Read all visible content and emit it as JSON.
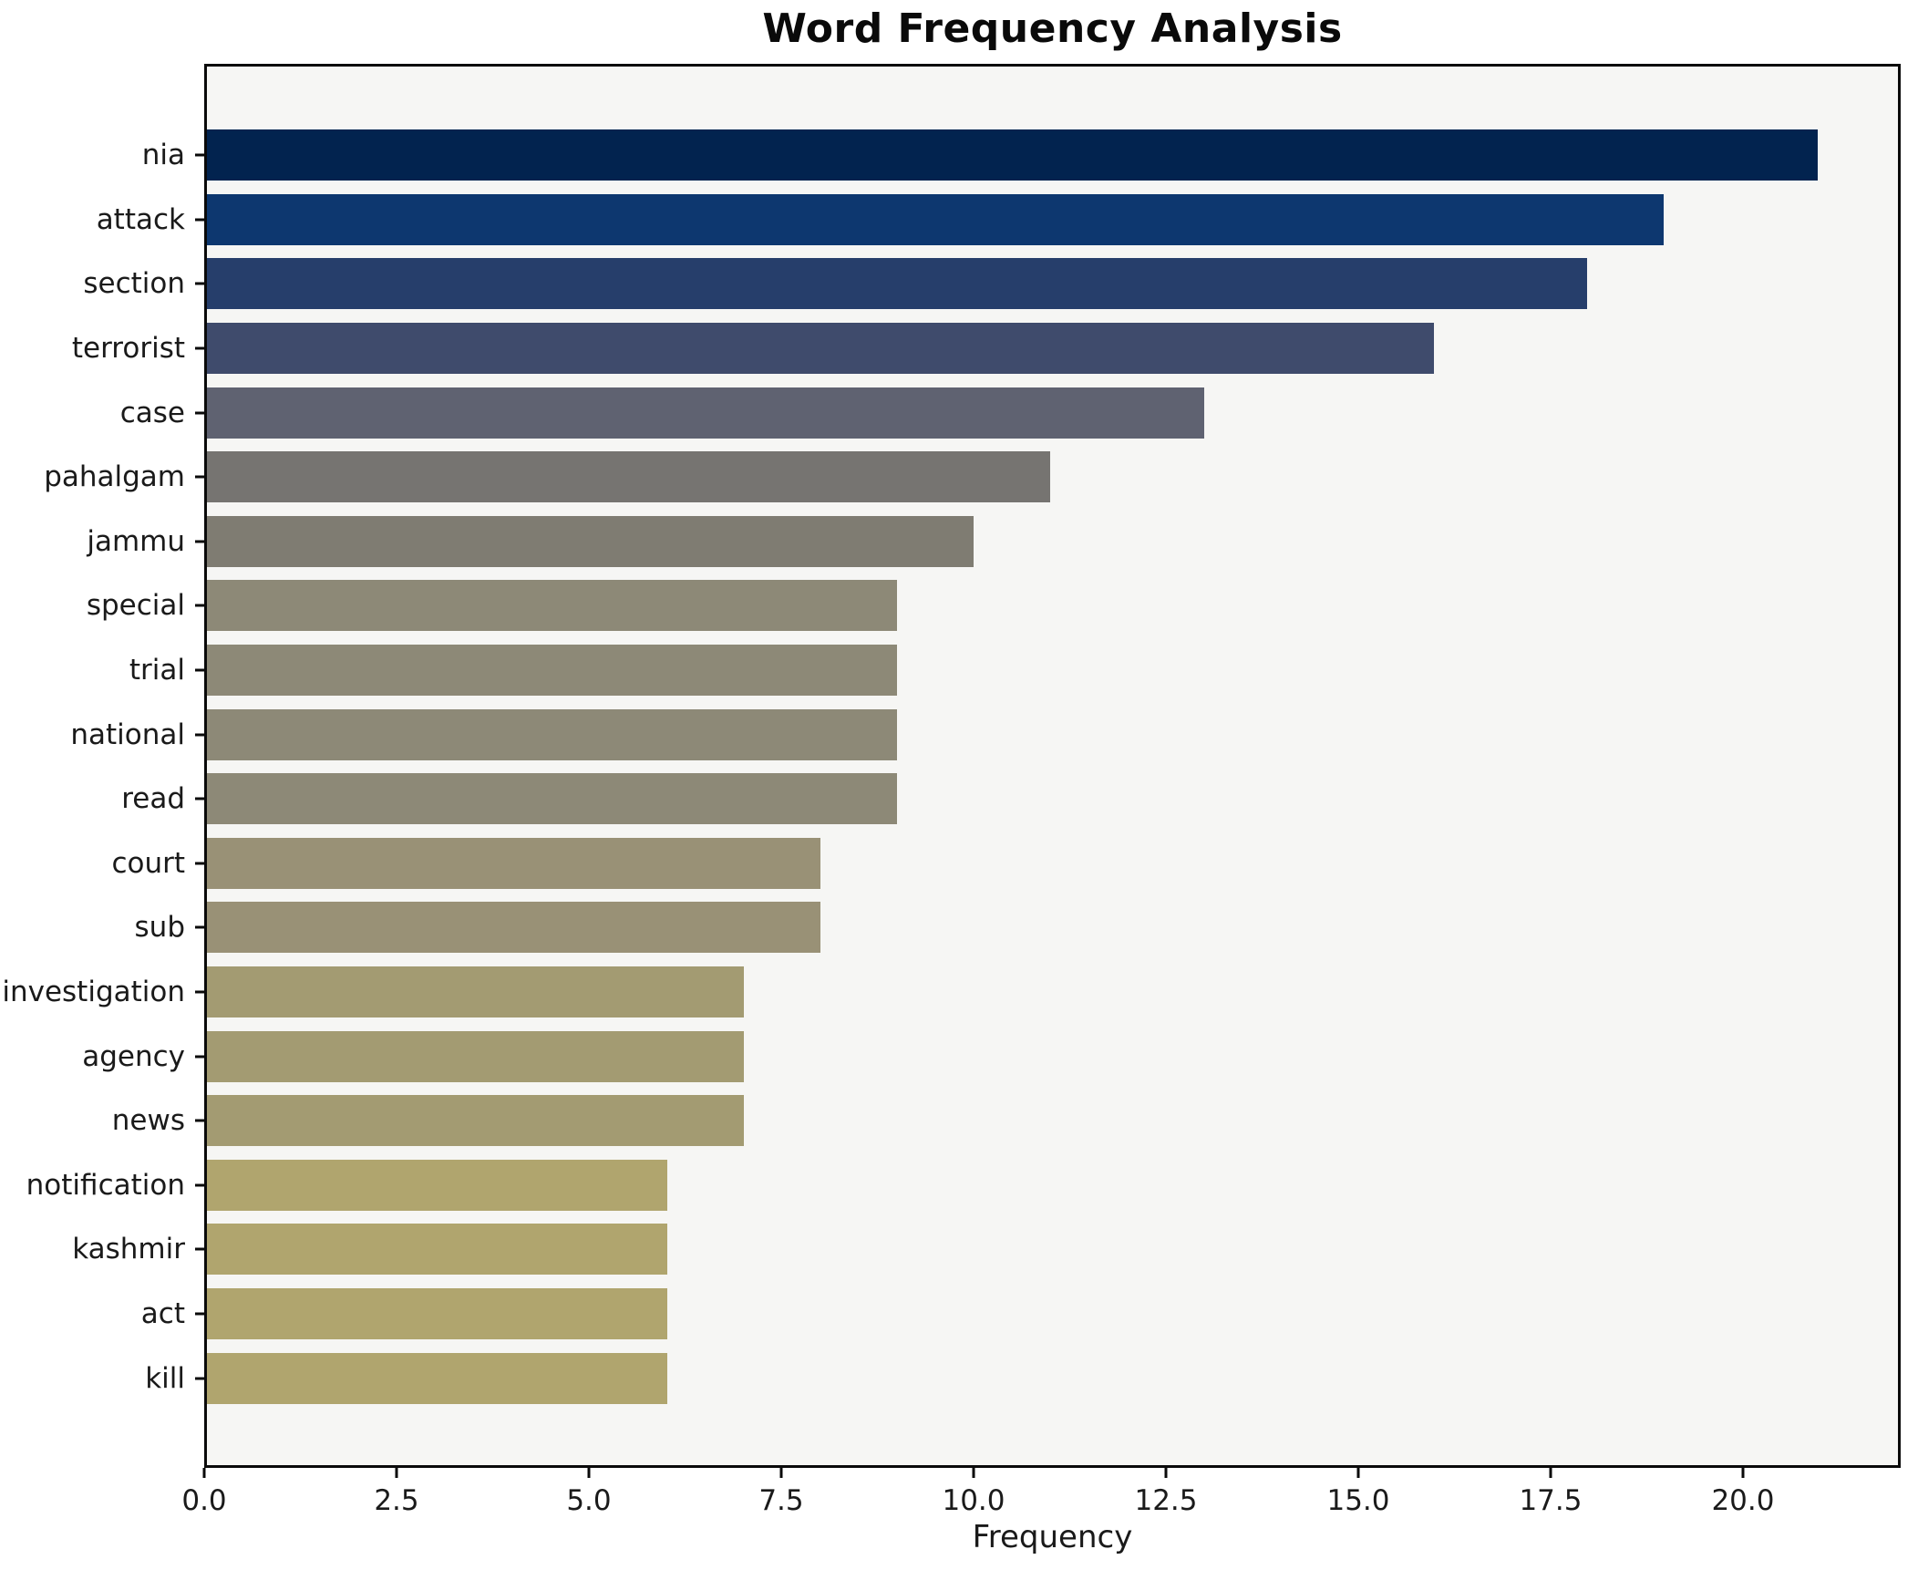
{
  "chart_data": {
    "type": "bar",
    "orientation": "horizontal",
    "title": "Word Frequency Analysis",
    "xlabel": "Frequency",
    "ylabel": "",
    "categories": [
      "nia",
      "attack",
      "section",
      "terrorist",
      "case",
      "pahalgam",
      "jammu",
      "special",
      "trial",
      "national",
      "read",
      "court",
      "sub",
      "investigation",
      "agency",
      "news",
      "notification",
      "kashmir",
      "act",
      "kill"
    ],
    "values": [
      21,
      19,
      18,
      16,
      13,
      11,
      10,
      9,
      9,
      9,
      9,
      8,
      8,
      7,
      7,
      7,
      6,
      6,
      6,
      6
    ],
    "bar_colors": [
      "#02234f",
      "#0d376f",
      "#263e6b",
      "#3f4b6c",
      "#5f6271",
      "#767471",
      "#7f7c72",
      "#8d8977",
      "#8d8977",
      "#8d8977",
      "#8d8977",
      "#999176",
      "#999176",
      "#a39b72",
      "#a39b72",
      "#a39b72",
      "#b0a56e",
      "#b0a56e",
      "#b0a56e",
      "#b0a56e"
    ],
    "xlim": [
      0,
      22.05
    ],
    "xticks": [
      0,
      2.5,
      5,
      7.5,
      10,
      12.5,
      15,
      17.5,
      20
    ],
    "xtick_labels": [
      "0.0",
      "2.5",
      "5.0",
      "7.5",
      "10.0",
      "12.5",
      "15.0",
      "17.5",
      "20.0"
    ],
    "grid": false,
    "legend_position": "none",
    "colors": {
      "figure_background": "#ffffff",
      "plot_background": "#f6f6f4",
      "spine": "#0a0a0a",
      "text": "#1a1a1a"
    }
  }
}
